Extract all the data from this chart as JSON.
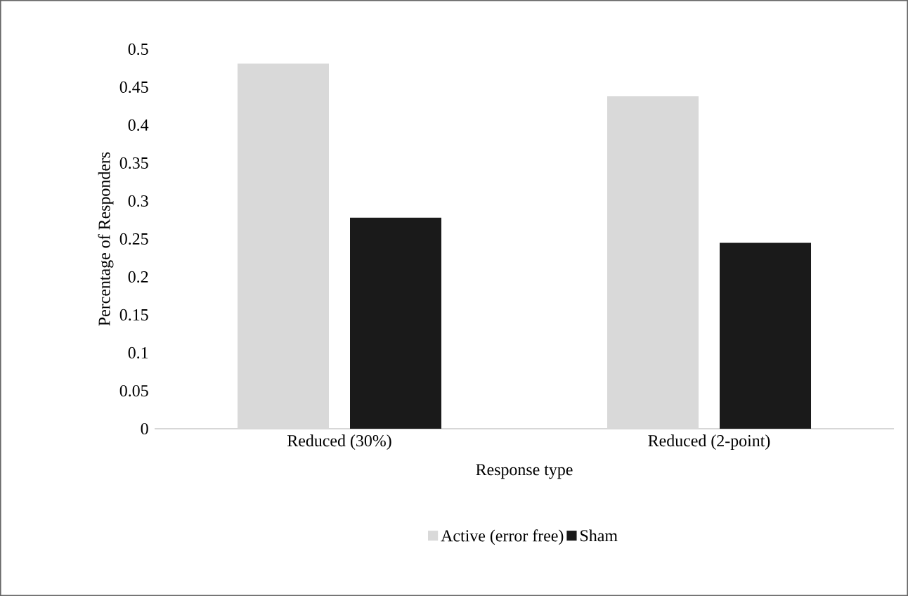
{
  "chart_data": {
    "type": "bar",
    "xlabel": "Response type",
    "ylabel": "Percentage of Responders",
    "categories": [
      "Reduced (30%)",
      "Reduced (2-point)"
    ],
    "series": [
      {
        "name": "Active (error free)",
        "color": "#d9d9d9",
        "values": [
          0.481,
          0.438
        ]
      },
      {
        "name": "Sham",
        "color": "#1a1a1a",
        "values": [
          0.278,
          0.245
        ]
      }
    ],
    "ylim": [
      0,
      0.5
    ],
    "yticks": [
      0,
      0.05,
      0.1,
      0.15,
      0.2,
      0.25,
      0.3,
      0.35,
      0.4,
      0.45,
      0.5
    ],
    "grid": false,
    "legend": "bottom"
  }
}
